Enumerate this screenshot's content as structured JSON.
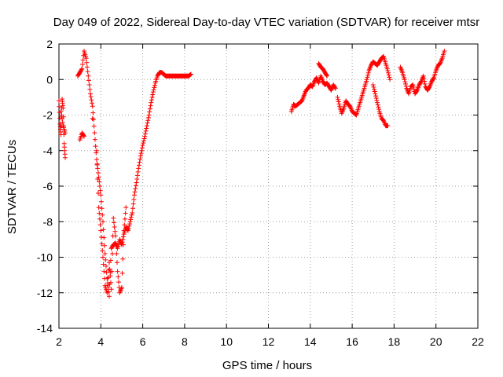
{
  "chart_data": {
    "type": "scatter",
    "title": "Day 049 of 2022, Sidereal Day-to-day VTEC variation (SDTVAR) for receiver mtsr",
    "xlabel": "GPS time / hours",
    "ylabel": "SDTVAR / TECUs",
    "xlim": [
      2,
      22
    ],
    "ylim": [
      -14,
      2
    ],
    "xticks": [
      2,
      4,
      6,
      8,
      10,
      12,
      14,
      16,
      18,
      20,
      22
    ],
    "yticks": [
      -14,
      -12,
      -10,
      -8,
      -6,
      -4,
      -2,
      0,
      2
    ],
    "xtick_labels": [
      "2",
      "4",
      "6",
      "8",
      "10",
      "12",
      "14",
      "16",
      "18",
      "20",
      "22"
    ],
    "ytick_labels": [
      "-14",
      "-12",
      "-10",
      "-8",
      "-6",
      "-4",
      "-2",
      "0",
      "2"
    ],
    "grid": true,
    "marker": "+",
    "color": "#ff0000",
    "series": [
      {
        "name": "SDTVAR",
        "x": [
          2.0,
          2.05,
          2.1,
          2.15,
          2.2,
          2.25,
          2.3,
          2.1,
          2.2,
          2.3,
          2.9,
          3.0,
          3.1,
          3.2,
          3.3,
          3.4,
          3.5,
          3.6,
          3.7,
          3.8,
          3.9,
          4.0,
          4.1,
          4.2,
          4.3,
          4.4,
          4.5,
          4.6,
          4.7,
          4.8,
          4.9,
          5.0,
          5.1,
          5.2,
          5.3,
          5.4,
          5.5,
          5.6,
          5.7,
          5.8,
          5.9,
          6.0,
          6.1,
          6.2,
          6.3,
          6.4,
          6.5,
          6.6,
          6.7,
          6.8,
          6.9,
          7.0,
          7.1,
          7.2,
          7.3,
          7.4,
          7.5,
          7.6,
          7.7,
          7.8,
          7.9,
          8.0,
          8.1,
          8.2,
          8.3,
          3.0,
          3.1,
          3.2,
          3.6,
          3.8,
          3.9,
          4.0,
          4.1,
          4.2,
          4.3,
          4.4,
          4.5,
          4.6,
          4.7,
          4.8,
          4.9,
          5.0,
          5.1,
          5.2,
          13.1,
          13.2,
          13.3,
          13.4,
          13.5,
          13.6,
          13.7,
          13.8,
          13.9,
          14.0,
          14.1,
          14.2,
          14.3,
          14.4,
          14.5,
          14.6,
          14.7,
          14.8,
          14.9,
          15.0,
          15.1,
          15.2,
          14.4,
          14.5,
          14.6,
          14.7,
          14.8,
          15.3,
          15.4,
          15.5,
          15.6,
          15.7,
          15.8,
          15.9,
          16.0,
          16.1,
          16.2,
          16.3,
          16.4,
          16.5,
          16.6,
          16.7,
          16.8,
          16.9,
          17.0,
          17.1,
          17.2,
          17.3,
          17.4,
          17.5,
          17.6,
          17.7,
          17.8,
          17.0,
          17.1,
          17.2,
          17.3,
          17.4,
          17.5,
          17.6,
          17.7,
          18.3,
          18.4,
          18.5,
          18.6,
          18.7,
          18.8,
          18.9,
          19.0,
          19.1,
          19.2,
          19.3,
          19.4,
          19.5,
          19.6,
          19.7,
          19.8,
          19.9,
          20.0,
          20.1,
          20.2,
          20.3,
          20.4
        ],
        "y": [
          -1.2,
          -2.5,
          -3.1,
          -1.1,
          -1.6,
          -3.6,
          -4.4,
          -1.8,
          -2.6,
          -3.0,
          0.2,
          0.4,
          0.6,
          1.6,
          1.2,
          0.2,
          -0.8,
          -1.5,
          -3.0,
          -4.5,
          -5.5,
          -6.5,
          -8.0,
          -9.8,
          -11.2,
          -12.2,
          -9.5,
          -9.3,
          -9.2,
          -9.5,
          -9.0,
          -9.3,
          -8.7,
          -8.3,
          -8.5,
          -8.0,
          -7.5,
          -6.5,
          -5.8,
          -5.0,
          -4.3,
          -3.7,
          -3.2,
          -2.6,
          -2.0,
          -1.3,
          -0.7,
          -0.2,
          0.2,
          0.4,
          0.4,
          0.3,
          0.2,
          0.2,
          0.2,
          0.2,
          0.2,
          0.2,
          0.2,
          0.2,
          0.2,
          0.2,
          0.2,
          0.2,
          0.3,
          -3.4,
          -3.0,
          -3.2,
          -2.2,
          -4.0,
          -7.2,
          -8.5,
          -10.0,
          -11.6,
          -12.0,
          -10.3,
          -11.8,
          -7.8,
          -8.8,
          -10.8,
          -12.0,
          -11.7,
          -8.5,
          -7.2,
          -1.8,
          -1.4,
          -1.5,
          -1.4,
          -1.3,
          -1.2,
          -0.9,
          -0.6,
          -0.5,
          -0.3,
          -0.4,
          -0.1,
          0.1,
          -0.2,
          0.2,
          -0.1,
          -0.3,
          -0.2,
          -0.4,
          -0.6,
          -0.3,
          -0.5,
          0.9,
          0.7,
          0.6,
          0.4,
          0.2,
          -1.0,
          -1.5,
          -1.9,
          -1.6,
          -1.2,
          -1.4,
          -1.5,
          -1.8,
          -1.9,
          -2.0,
          -1.6,
          -1.2,
          -0.8,
          -0.4,
          0.0,
          0.5,
          0.8,
          1.0,
          0.9,
          0.8,
          1.0,
          1.2,
          1.3,
          0.9,
          0.5,
          0.0,
          -0.3,
          -0.8,
          -1.3,
          -1.8,
          -2.2,
          -2.3,
          -2.6,
          -2.6,
          0.7,
          0.4,
          0.0,
          -0.5,
          -0.8,
          -0.4,
          -0.3,
          -0.8,
          -0.6,
          -0.3,
          -0.1,
          0.2,
          -0.4,
          -0.6,
          -0.4,
          -0.1,
          0.1,
          0.5,
          0.8,
          0.9,
          1.2,
          1.6
        ]
      }
    ]
  }
}
